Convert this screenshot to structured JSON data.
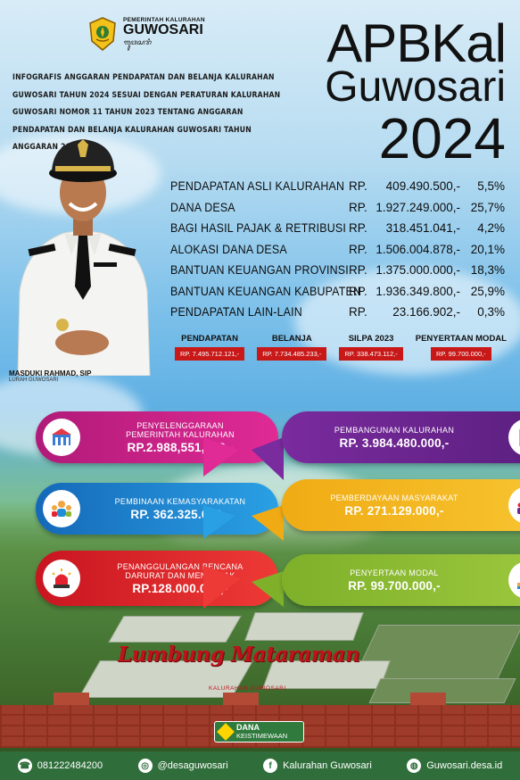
{
  "header": {
    "brand_top": "PEMERINTAH KALURAHAN",
    "brand_name": "GUWOSARI",
    "brand_script": "ꦒꦸꦮꦱꦫꦶ",
    "intro": "INFOGRAFIS ANGGARAN PENDAPATAN DAN BELANJA KALURAHAN GUWOSARI TAHUN 2024 SESUAI DENGAN PERATURAN KALURAHAN GUWOSARI NOMOR 11 TAHUN 2023 TENTANG ANGGARAN PENDAPATAN DAN BELANJA KALURAHAN GUWOSARI TAHUN ANGGARAN 2024",
    "title_line1": "APBKal",
    "title_line2": "Guwosari",
    "title_line3": "2024"
  },
  "person": {
    "name": "MASDUKI RAHMAD, SIP",
    "role": "LURAH GUWOSARI"
  },
  "revenue": [
    {
      "label": "PENDAPATAN ASLI KALURAHAN",
      "rp": "RP.",
      "amount": "409.490.500,-",
      "pct": "5,5%"
    },
    {
      "label": "DANA DESA",
      "rp": "RP.",
      "amount": "1.927.249.000,-",
      "pct": "25,7%"
    },
    {
      "label": "BAGI HASIL PAJAK & RETRIBUSI",
      "rp": "RP.",
      "amount": "318.451.041,-",
      "pct": "4,2%"
    },
    {
      "label": "ALOKASI DANA DESA",
      "rp": "RP.",
      "amount": "1.506.004.878,-",
      "pct": "20,1%"
    },
    {
      "label": "BANTUAN KEUANGAN PROVINSI",
      "rp": "RP.",
      "amount": "1.375.000.000,-",
      "pct": "18,3%"
    },
    {
      "label": "BANTUAN KEUANGAN KABUPATEN",
      "rp": "RP.",
      "amount": "1.936.349.800,-",
      "pct": "25,9%"
    },
    {
      "label": "PENDAPATAN LAIN-LAIN",
      "rp": "RP.",
      "amount": "23.166.902,-",
      "pct": "0,3%"
    }
  ],
  "summary": [
    {
      "label": "PENDAPATAN",
      "value": "RP. 7.495.712.121,-"
    },
    {
      "label": "BELANJA",
      "value": "RP. 7.734.485.233,-"
    },
    {
      "label": "SILPA 2023",
      "value": "RP. 338.473.112,-"
    },
    {
      "label": "PENYERTAAN MODAL",
      "value": "RP. 99.700.000,-"
    }
  ],
  "spending": {
    "penyelenggaraan": {
      "label1": "PENYELENGGARAAN",
      "label2": "PEMERINTAH KALURAHAN",
      "amount": "RP.2.988,551,233,-"
    },
    "pembinaan": {
      "label1": "PEMBINAAN KEMASYARAKATAN",
      "amount": "RP. 362.325.000,-"
    },
    "penanggulangan": {
      "label1": "PENANGGULANGAN BENCANA",
      "label2": "DARURAT DAN MENDESAK",
      "amount": "RP.128.000.000,-"
    },
    "pembangunan": {
      "label1": "PEMBANGUNAN KALURAHAN",
      "amount": "RP. 3.984.480.000,-"
    },
    "pemberdayaan": {
      "label1": "PEMBERDAYAAN MASYARAKAT",
      "amount": "RP. 271.129.000,-"
    },
    "penyertaan": {
      "label1": "PENYERTAAN MODAL",
      "amount": "RP. 99.700.000,-"
    }
  },
  "scene": {
    "sign": "Lumbung Mataraman",
    "sign_sub": "KALURAHAN GUWOSARI",
    "dana_a": "DANA",
    "dana_b": "KEISTIMEWAAN"
  },
  "footer": {
    "phone": "081222484200",
    "instagram": "@desaguwosari",
    "facebook": "Kalurahan Guwosari",
    "web": "Guwosari.desa.id"
  },
  "colors": {
    "card_magenta": "#d31f8a",
    "card_blue": "#1f8fd8",
    "card_red": "#e5232e",
    "card_purple": "#6d2690",
    "card_yellow": "#f3b51d",
    "card_green": "#8ab832",
    "summary_red": "#c81818",
    "footer_green": "#2f6e3a"
  },
  "icons": [
    "government-building-icon",
    "community-people-icon",
    "siren-icon",
    "crane-construction-icon",
    "empowerment-people-icon",
    "money-hand-icon",
    "phone-icon",
    "instagram-icon",
    "facebook-icon",
    "globe-icon"
  ]
}
